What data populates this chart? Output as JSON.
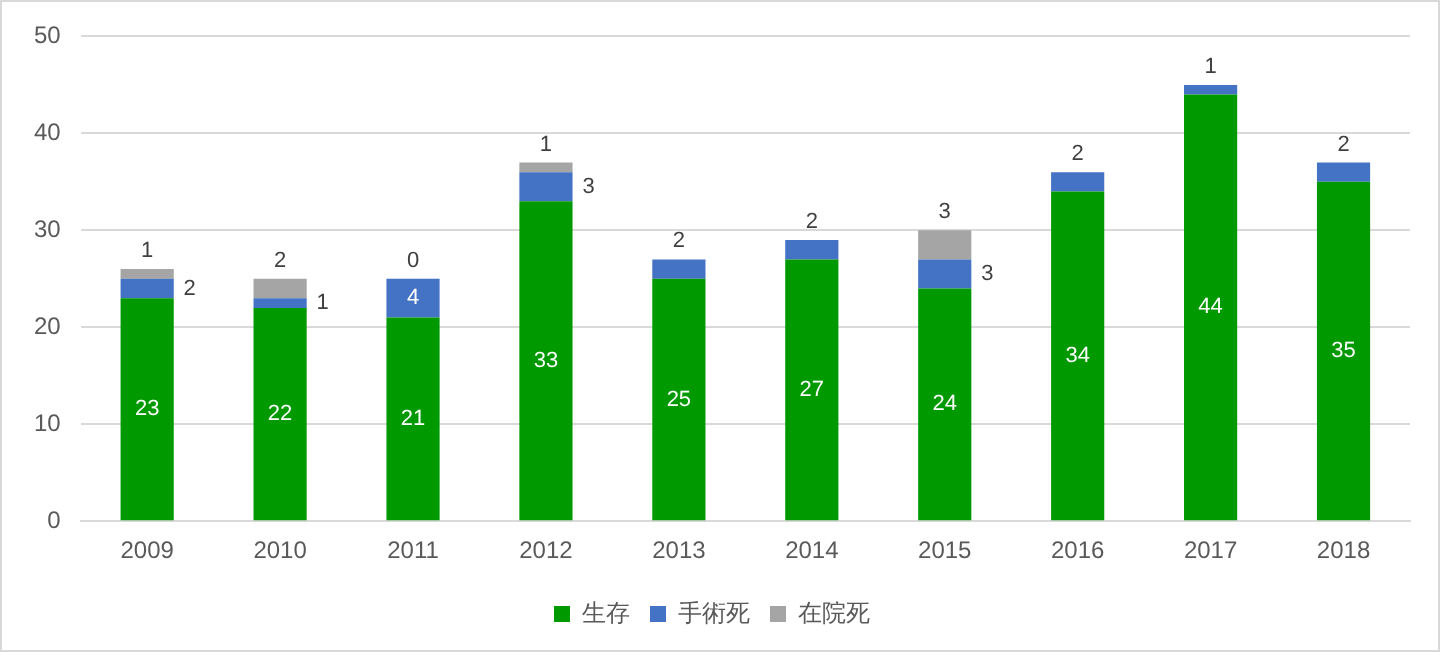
{
  "chart_data": {
    "type": "bar",
    "stacked": true,
    "categories": [
      "2009",
      "2010",
      "2011",
      "2012",
      "2013",
      "2014",
      "2015",
      "2016",
      "2017",
      "2018"
    ],
    "series": [
      {
        "name": "生存",
        "color": "#009900",
        "values": [
          23,
          22,
          21,
          33,
          25,
          27,
          24,
          34,
          44,
          35
        ],
        "value_labels": [
          "23",
          "22",
          "21",
          "33",
          "25",
          "27",
          "24",
          "34",
          "44",
          "35"
        ]
      },
      {
        "name": "手術死",
        "color": "#4472c4",
        "values": [
          2,
          1,
          4,
          3,
          2,
          2,
          3,
          2,
          1,
          2
        ],
        "value_labels": [
          "2",
          "1",
          "4",
          "3",
          "2",
          "2",
          "3",
          "2",
          "1",
          "2"
        ]
      },
      {
        "name": "在院死",
        "color": "#a5a5a5",
        "values": [
          1,
          2,
          0,
          1,
          0,
          0,
          3,
          0,
          0,
          0
        ],
        "value_labels": [
          "1",
          "2",
          "0",
          "1",
          null,
          null,
          "3",
          null,
          null,
          null
        ]
      }
    ],
    "ylim": [
      0,
      50
    ],
    "yticks": [
      0,
      10,
      20,
      30,
      40,
      50
    ],
    "grid": "y",
    "legend": "bottom"
  }
}
